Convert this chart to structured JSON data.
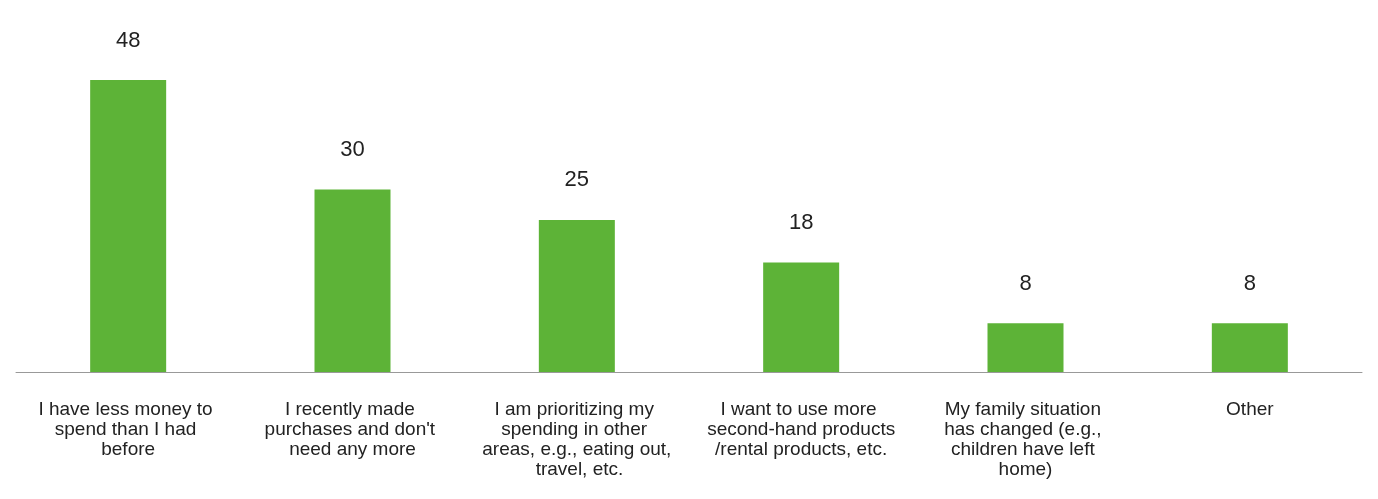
{
  "chart_data": {
    "type": "bar",
    "categories": [
      "I have less money to spend than I had before",
      "I recently made purchases and don't need any more",
      "I am prioritizing my spending in other areas, e.g., eating out, travel, etc.",
      "I want to use more second-hand products/rental products, etc.",
      "My family situation has changed (e.g., children have left home)",
      "Other"
    ],
    "values": [
      48,
      30,
      25,
      18,
      8,
      8
    ],
    "color": "#5db337",
    "data_labels": true,
    "grid": false
  }
}
